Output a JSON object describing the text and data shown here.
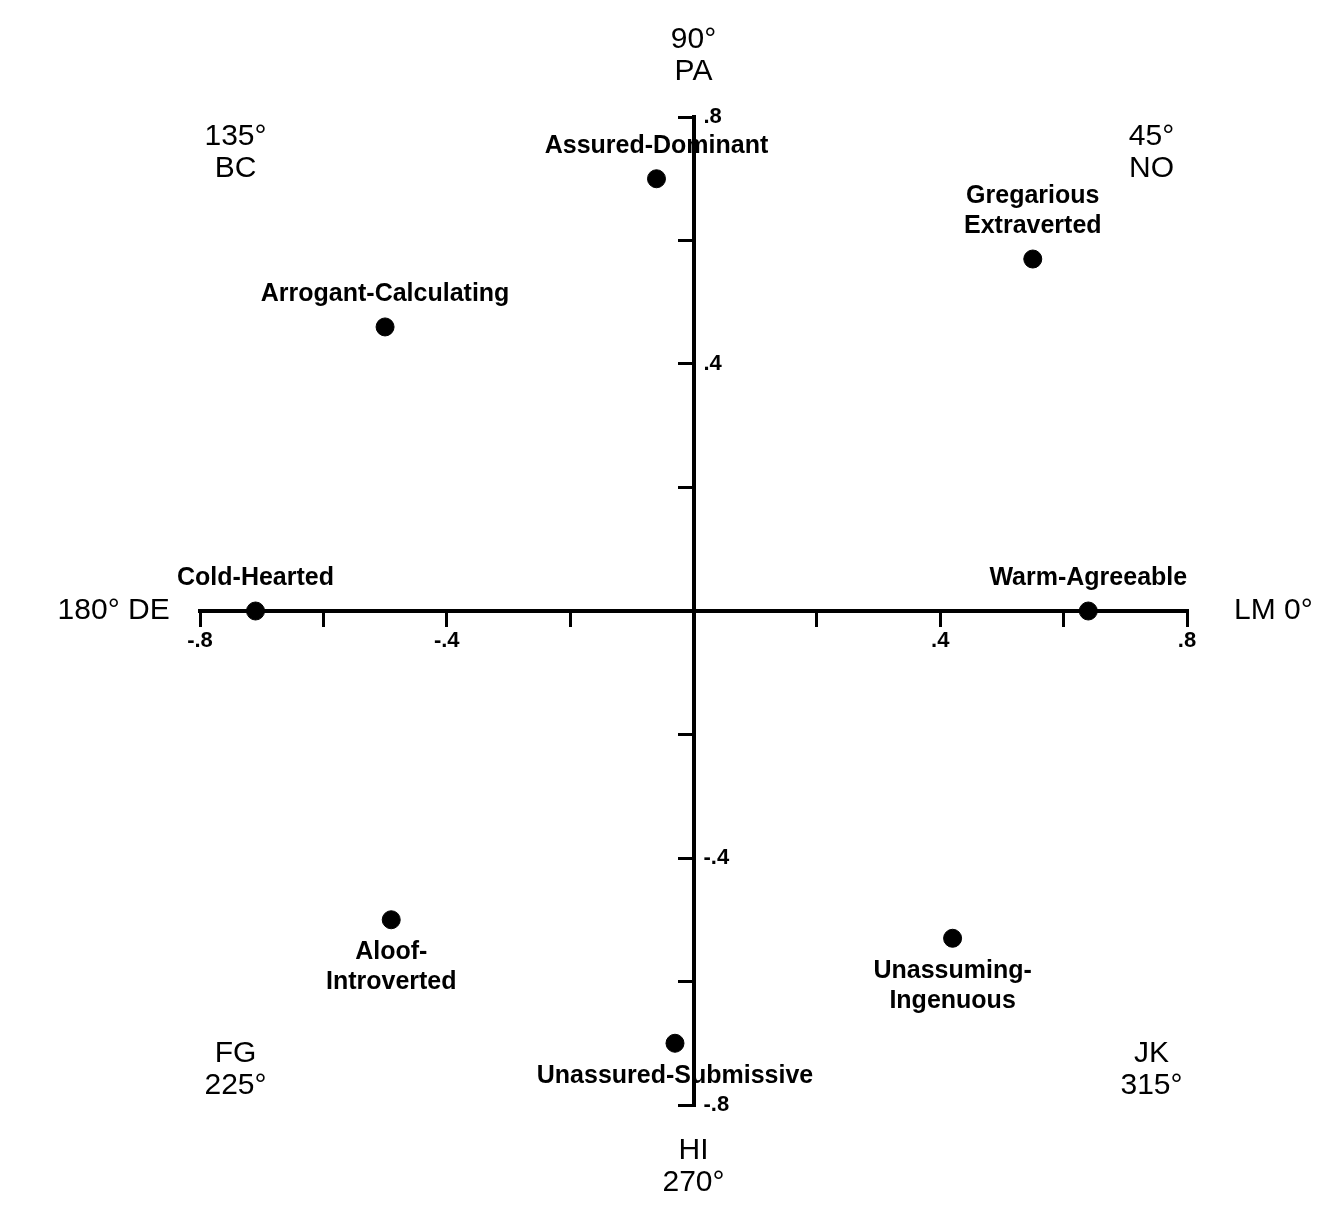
{
  "chart_data": {
    "type": "scatter",
    "marker": "circle",
    "legend": false,
    "grid": false,
    "x": [
      -0.06,
      0.55,
      -0.5,
      -0.71,
      0.64,
      -0.49,
      0.42,
      -0.03
    ],
    "series": [
      {
        "color": "#000000",
        "values": [
          0.7,
          0.57,
          0.46,
          0,
          0,
          -0.5,
          -0.53,
          -0.7
        ]
      }
    ],
    "xlim": [
      -0.8,
      0.8
    ],
    "ylim": [
      -0.8,
      0.8
    ],
    "xticks": [
      {
        "value": -0.8,
        "label": "-.8"
      },
      {
        "value": -0.6,
        "label": null
      },
      {
        "value": -0.4,
        "label": "-.4"
      },
      {
        "value": -0.2,
        "label": null
      },
      {
        "value": 0.2,
        "label": null
      },
      {
        "value": 0.4,
        "label": ".4"
      },
      {
        "value": 0.6,
        "label": null
      },
      {
        "value": 0.8,
        "label": ".8"
      }
    ],
    "yticks": [
      {
        "value": -0.8,
        "label": "-.8"
      },
      {
        "value": -0.6,
        "label": null
      },
      {
        "value": -0.4,
        "label": "-.4"
      },
      {
        "value": -0.2,
        "label": null
      },
      {
        "value": 0.2,
        "label": null
      },
      {
        "value": 0.4,
        "label": ".4"
      },
      {
        "value": 0.6,
        "label": null
      },
      {
        "value": 0.8,
        "label": ".8"
      }
    ],
    "annotations": [
      {
        "text": "Assured-Dominant",
        "x": -0.06,
        "y": 0.7
      },
      {
        "text": "Gregarious\nExtraverted",
        "x": 0.55,
        "y": 0.57
      },
      {
        "text": "Arrogant-Calculating",
        "x": -0.5,
        "y": 0.46
      },
      {
        "text": "Cold-Hearted",
        "x": -0.71,
        "y": 0
      },
      {
        "text": "Warm-Agreeable",
        "x": 0.64,
        "y": 0
      },
      {
        "text": "Aloof-\nIntroverted",
        "x": -0.49,
        "y": -0.5
      },
      {
        "text": "Unassuming-\nIngenuous",
        "x": 0.42,
        "y": -0.53
      },
      {
        "text": "Unassured-Submissive",
        "x": -0.03,
        "y": -0.7
      },
      "LM 0°",
      "45°\nNO",
      "90°\nPA",
      "135°\nBC",
      "180° DE",
      "FG\n225°",
      "HI\n270°",
      "JK\n315°"
    ]
  }
}
